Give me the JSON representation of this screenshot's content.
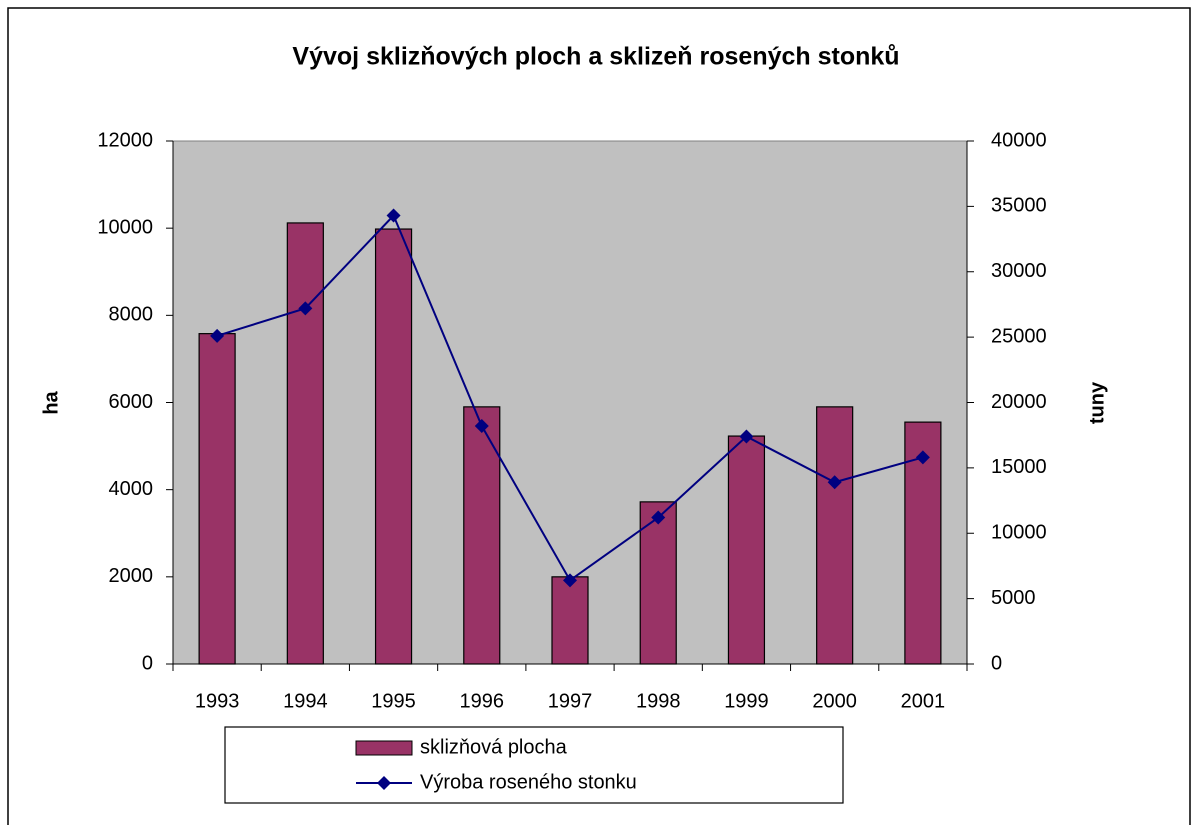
{
  "chart_data": {
    "type": "bar-line",
    "title": "Vývoj sklizňových ploch a sklizeň rosených stonků",
    "categories": [
      "1993",
      "1994",
      "1995",
      "1996",
      "1997",
      "1998",
      "1999",
      "2000",
      "2001"
    ],
    "series": [
      {
        "name": "sklizňová plocha",
        "type": "bar",
        "color": "#993366",
        "values": [
          7580,
          10120,
          9980,
          5900,
          2000,
          3720,
          5230,
          5900,
          5550
        ]
      },
      {
        "name": "Výroba roseného stonku",
        "type": "line",
        "axis": "y2",
        "color": "#000080",
        "values": [
          25100,
          27200,
          34300,
          18200,
          6400,
          11200,
          17400,
          13900,
          15800
        ]
      }
    ],
    "ylabel": "ha",
    "y2label": "tuny",
    "ylim": [
      0,
      12000
    ],
    "yticks": [
      0,
      2000,
      4000,
      6000,
      8000,
      10000,
      12000
    ],
    "y2lim": [
      0,
      40000
    ],
    "y2ticks": [
      0,
      5000,
      10000,
      15000,
      20000,
      25000,
      30000,
      35000,
      40000
    ],
    "plot_background": "#c0c0c0",
    "grid": false
  }
}
